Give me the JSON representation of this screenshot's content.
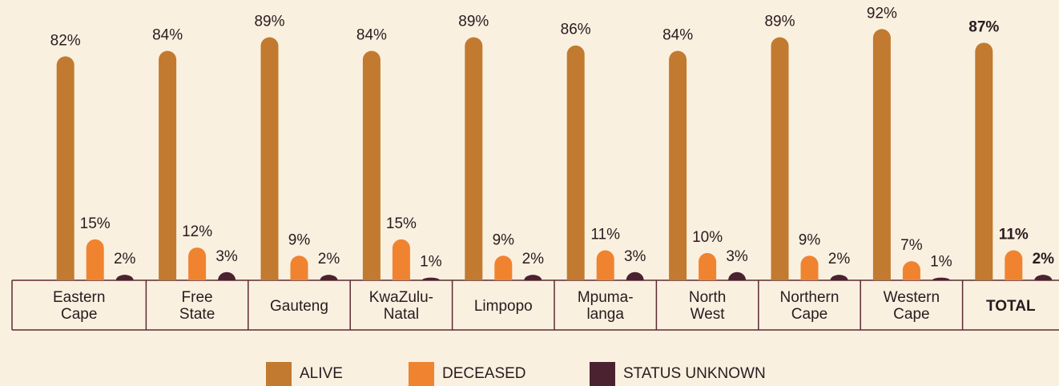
{
  "chart_data": {
    "type": "bar",
    "categories": [
      "Eastern\nCape",
      "Free\nState",
      "Gauteng",
      "KwaZulu-\nNatal",
      "Limpopo",
      "Mpuma-\nlanga",
      "North\nWest",
      "Northern\nCape",
      "Western\nCape",
      "TOTAL"
    ],
    "series": [
      {
        "name": "ALIVE",
        "color": "#c17a2f",
        "values": [
          82,
          84,
          89,
          84,
          89,
          86,
          84,
          89,
          92,
          87
        ],
        "value_labels": [
          "82%",
          "84%",
          "89%",
          "84%",
          "89%",
          "86%",
          "84%",
          "89%",
          "92%",
          "87%"
        ]
      },
      {
        "name": "DECEASED",
        "color": "#f08330",
        "values": [
          15,
          12,
          9,
          15,
          9,
          11,
          10,
          9,
          7,
          11
        ],
        "value_labels": [
          "15%",
          "12%",
          "9%",
          "15%",
          "9%",
          "11%",
          "10%",
          "9%",
          "7%",
          "11%"
        ]
      },
      {
        "name": "STATUS UNKNOWN",
        "color": "#4a2230",
        "values": [
          2,
          3,
          2,
          1,
          2,
          3,
          3,
          2,
          1,
          2
        ],
        "value_labels": [
          "2%",
          "3%",
          "2%",
          "1%",
          "2%",
          "3%",
          "3%",
          "2%",
          "1%",
          "2%"
        ]
      }
    ],
    "ylim": [
      0,
      100
    ]
  }
}
